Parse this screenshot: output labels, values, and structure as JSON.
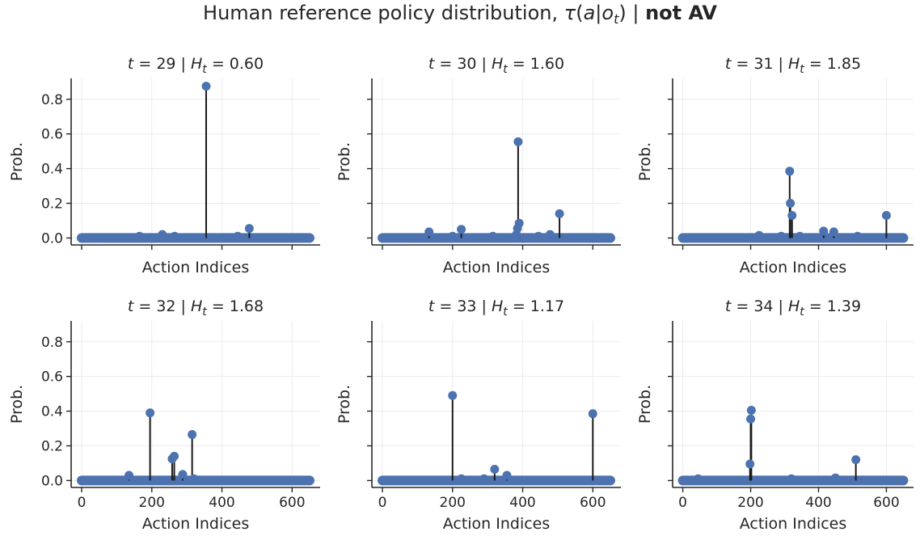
{
  "figure": {
    "title_parts": {
      "prefix": "Human reference policy distribution, ",
      "tau": "τ",
      "paren_open": "(",
      "a": "a",
      "bar": "|",
      "o": "o",
      "sub_t": "t",
      "paren_close": ")",
      "sep": " | ",
      "bold": "not AV"
    },
    "xlabel": "Action Indices",
    "ylabel": "Prob.",
    "colors": {
      "marker": "#4C72B0",
      "stem": "#1a1a1a",
      "grid": "#ebebeb",
      "spine": "#262626"
    }
  },
  "chart_data": [
    {
      "type": "scatter",
      "t": "29",
      "H": "0.60",
      "xlim": [
        -30,
        680
      ],
      "ylim": [
        -0.04,
        0.92
      ],
      "xticks": [
        0,
        200,
        400,
        600
      ],
      "yticks": [
        0.0,
        0.2,
        0.4,
        0.6,
        0.8
      ],
      "show_xticklabels": false,
      "show_yticklabels": true,
      "baseline_range": [
        0,
        650
      ],
      "stems": [
        [
          165,
          0.01
        ],
        [
          230,
          0.02
        ],
        [
          265,
          0.01
        ],
        [
          355,
          0.875
        ],
        [
          445,
          0.01
        ],
        [
          478,
          0.055
        ]
      ]
    },
    {
      "type": "scatter",
      "t": "30",
      "H": "1.60",
      "xlim": [
        -30,
        680
      ],
      "ylim": [
        -0.04,
        0.92
      ],
      "xticks": [
        0,
        200,
        400,
        600
      ],
      "yticks": [
        0.0,
        0.2,
        0.4,
        0.6,
        0.8
      ],
      "show_xticklabels": false,
      "show_yticklabels": false,
      "baseline_range": [
        0,
        650
      ],
      "stems": [
        [
          133,
          0.035
        ],
        [
          200,
          0.01
        ],
        [
          225,
          0.05
        ],
        [
          315,
          0.01
        ],
        [
          382,
          0.02
        ],
        [
          385,
          0.055
        ],
        [
          387,
          0.555
        ],
        [
          390,
          0.085
        ],
        [
          445,
          0.01
        ],
        [
          478,
          0.02
        ],
        [
          505,
          0.14
        ]
      ]
    },
    {
      "type": "scatter",
      "t": "31",
      "H": "1.85",
      "xlim": [
        -30,
        680
      ],
      "ylim": [
        -0.04,
        0.92
      ],
      "xticks": [
        0,
        200,
        400,
        600
      ],
      "yticks": [
        0.0,
        0.2,
        0.4,
        0.6,
        0.8
      ],
      "show_xticklabels": false,
      "show_yticklabels": false,
      "baseline_range": [
        0,
        650
      ],
      "stems": [
        [
          225,
          0.015
        ],
        [
          290,
          0.01
        ],
        [
          315,
          0.385
        ],
        [
          317,
          0.2
        ],
        [
          322,
          0.13
        ],
        [
          345,
          0.01
        ],
        [
          415,
          0.04
        ],
        [
          445,
          0.035
        ],
        [
          515,
          0.01
        ],
        [
          600,
          0.13
        ]
      ]
    },
    {
      "type": "scatter",
      "t": "32",
      "H": "1.68",
      "xlim": [
        -30,
        680
      ],
      "ylim": [
        -0.04,
        0.92
      ],
      "xticks": [
        0,
        200,
        400,
        600
      ],
      "yticks": [
        0.0,
        0.2,
        0.4,
        0.6,
        0.8
      ],
      "show_xticklabels": true,
      "show_yticklabels": true,
      "baseline_range": [
        0,
        650
      ],
      "stems": [
        [
          135,
          0.03
        ],
        [
          195,
          0.39
        ],
        [
          258,
          0.125
        ],
        [
          264,
          0.14
        ],
        [
          288,
          0.035
        ],
        [
          315,
          0.265
        ],
        [
          320,
          0.01
        ]
      ]
    },
    {
      "type": "scatter",
      "t": "33",
      "H": "1.17",
      "xlim": [
        -30,
        680
      ],
      "ylim": [
        -0.04,
        0.92
      ],
      "xticks": [
        0,
        200,
        400,
        600
      ],
      "yticks": [
        0.0,
        0.2,
        0.4,
        0.6,
        0.8
      ],
      "show_xticklabels": true,
      "show_yticklabels": false,
      "baseline_range": [
        0,
        650
      ],
      "stems": [
        [
          200,
          0.49
        ],
        [
          225,
          0.01
        ],
        [
          290,
          0.01
        ],
        [
          320,
          0.065
        ],
        [
          355,
          0.03
        ],
        [
          600,
          0.385
        ]
      ]
    },
    {
      "type": "scatter",
      "t": "34",
      "H": "1.39",
      "xlim": [
        -30,
        680
      ],
      "ylim": [
        -0.04,
        0.92
      ],
      "xticks": [
        0,
        200,
        400,
        600
      ],
      "yticks": [
        0.0,
        0.2,
        0.4,
        0.6,
        0.8
      ],
      "show_xticklabels": true,
      "show_yticklabels": false,
      "baseline_range": [
        0,
        650
      ],
      "stems": [
        [
          45,
          0.01
        ],
        [
          198,
          0.095
        ],
        [
          200,
          0.355
        ],
        [
          202,
          0.405
        ],
        [
          320,
          0.01
        ],
        [
          450,
          0.015
        ],
        [
          510,
          0.12
        ]
      ]
    }
  ]
}
